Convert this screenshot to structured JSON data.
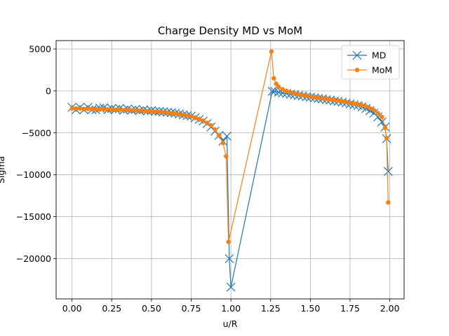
{
  "chart_data": {
    "type": "line",
    "title": "Charge Density MD vs MoM",
    "xlabel": "u/R",
    "ylabel": "Sigma",
    "xlim": [
      -0.1,
      2.09
    ],
    "ylim": [
      -24800,
      6000
    ],
    "xticks": [
      0.0,
      0.25,
      0.5,
      0.75,
      1.0,
      1.25,
      1.5,
      1.75,
      2.0
    ],
    "xtick_labels": [
      "0.00",
      "0.25",
      "0.50",
      "0.75",
      "1.00",
      "1.25",
      "1.50",
      "1.75",
      "2.00"
    ],
    "yticks": [
      5000,
      0,
      -5000,
      -10000,
      -15000,
      -20000
    ],
    "ytick_labels": [
      "5000",
      "0",
      "−5000",
      "−10000",
      "−15000",
      "−20000"
    ],
    "grid": true,
    "legend_position": "upper right",
    "series": [
      {
        "name": "MD",
        "color": "#1f77b4",
        "marker": "x",
        "x": [
          0.0,
          0.025,
          0.05,
          0.075,
          0.1,
          0.125,
          0.15,
          0.175,
          0.2,
          0.225,
          0.25,
          0.275,
          0.3,
          0.325,
          0.35,
          0.375,
          0.4,
          0.425,
          0.45,
          0.475,
          0.5,
          0.525,
          0.55,
          0.575,
          0.6,
          0.625,
          0.65,
          0.675,
          0.7,
          0.725,
          0.75,
          0.775,
          0.8,
          0.825,
          0.85,
          0.875,
          0.9,
          0.925,
          0.95,
          0.975,
          0.99,
          1.0,
          1.26,
          1.275,
          1.3,
          1.325,
          1.35,
          1.375,
          1.4,
          1.425,
          1.45,
          1.475,
          1.5,
          1.525,
          1.55,
          1.575,
          1.6,
          1.625,
          1.65,
          1.675,
          1.7,
          1.725,
          1.75,
          1.775,
          1.8,
          1.825,
          1.85,
          1.875,
          1.9,
          1.925,
          1.95,
          1.97,
          1.98,
          1.99
        ],
        "y": [
          -1950,
          -2250,
          -1950,
          -2250,
          -1950,
          -2250,
          -2250,
          -2050,
          -2000,
          -2250,
          -2100,
          -2200,
          -2100,
          -2300,
          -2150,
          -2300,
          -2200,
          -2350,
          -2250,
          -2400,
          -2350,
          -2450,
          -2450,
          -2500,
          -2550,
          -2600,
          -2650,
          -2750,
          -2850,
          -2950,
          -3000,
          -3200,
          -3400,
          -3600,
          -3900,
          -4300,
          -4800,
          -5300,
          -6000,
          -5400,
          -20000,
          -23400,
          -50,
          -50,
          -150,
          -250,
          -300,
          -400,
          -450,
          -550,
          -600,
          -700,
          -750,
          -850,
          -900,
          -950,
          -1050,
          -1100,
          -1200,
          -1250,
          -1350,
          -1450,
          -1550,
          -1650,
          -1750,
          -1900,
          -2100,
          -2350,
          -2650,
          -3100,
          -3700,
          -4300,
          -5700,
          -9600
        ]
      },
      {
        "name": "MoM",
        "color": "#ff7f0e",
        "marker": "o",
        "x": [
          0.0,
          0.025,
          0.05,
          0.075,
          0.1,
          0.125,
          0.15,
          0.175,
          0.2,
          0.225,
          0.25,
          0.275,
          0.3,
          0.325,
          0.35,
          0.375,
          0.4,
          0.425,
          0.45,
          0.475,
          0.5,
          0.525,
          0.55,
          0.575,
          0.6,
          0.625,
          0.65,
          0.675,
          0.7,
          0.725,
          0.75,
          0.775,
          0.8,
          0.825,
          0.85,
          0.875,
          0.9,
          0.925,
          0.95,
          0.97,
          0.985,
          1.255,
          1.27,
          1.285,
          1.3,
          1.325,
          1.35,
          1.375,
          1.4,
          1.425,
          1.45,
          1.475,
          1.5,
          1.525,
          1.55,
          1.575,
          1.6,
          1.625,
          1.65,
          1.675,
          1.7,
          1.725,
          1.75,
          1.775,
          1.8,
          1.825,
          1.85,
          1.875,
          1.9,
          1.925,
          1.95,
          1.97,
          1.98,
          1.99
        ],
        "y": [
          -2100,
          -2100,
          -2100,
          -2150,
          -2150,
          -2150,
          -2150,
          -2200,
          -2200,
          -2200,
          -2250,
          -2250,
          -2250,
          -2300,
          -2300,
          -2300,
          -2350,
          -2350,
          -2400,
          -2400,
          -2450,
          -2500,
          -2500,
          -2550,
          -2600,
          -2650,
          -2700,
          -2800,
          -2850,
          -2950,
          -3050,
          -3200,
          -3350,
          -3550,
          -3800,
          -4100,
          -4600,
          -5300,
          -6200,
          -7800,
          -18000,
          4700,
          1500,
          850,
          500,
          200,
          0,
          -150,
          -300,
          -400,
          -500,
          -600,
          -700,
          -750,
          -850,
          -900,
          -950,
          -1000,
          -1100,
          -1150,
          -1250,
          -1300,
          -1400,
          -1500,
          -1600,
          -1700,
          -1850,
          -2050,
          -2300,
          -2650,
          -3100,
          -4400,
          -5600,
          -13300
        ]
      }
    ]
  }
}
